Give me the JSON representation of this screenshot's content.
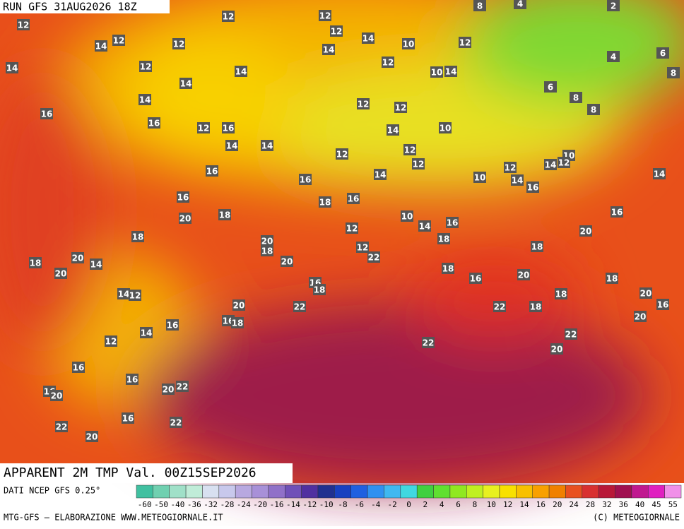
{
  "header": {
    "run": "RUN GFS 31AUG2026 18Z"
  },
  "map": {
    "labels": [
      12,
      12,
      12,
      14,
      12,
      12,
      12,
      14,
      14,
      10,
      12,
      12,
      14,
      12,
      14,
      10,
      14,
      14,
      14,
      6,
      8,
      8,
      16,
      16,
      12,
      16,
      12,
      12,
      14,
      10,
      14,
      14,
      12,
      12,
      12,
      10,
      12,
      14,
      12,
      14,
      10,
      14,
      16,
      14,
      16,
      16,
      16,
      18,
      16,
      18,
      20,
      10,
      14,
      16,
      16,
      20,
      12,
      18,
      18,
      20,
      18,
      12,
      22,
      18,
      20,
      20,
      18,
      20,
      14,
      18,
      16,
      20,
      18,
      14,
      12,
      16,
      18,
      18,
      20,
      16,
      20,
      22,
      22,
      18,
      16,
      18,
      16,
      14,
      12,
      22,
      20,
      22,
      20,
      16,
      16,
      16,
      20,
      20,
      22,
      16,
      22,
      22,
      20,
      8,
      4,
      2,
      4,
      6,
      8
    ]
  },
  "footer": {
    "title": "APPARENT 2M TMP Val. 00Z15SEP2026",
    "source": "DATI NCEP GFS 0.25°",
    "credit": "MTG-GFS — ELABORAZIONE WWW.METEOGIORNALE.IT",
    "copyright": "(C) METEOGIORNALE"
  },
  "legend": {
    "ticks": [
      -60,
      -50,
      -40,
      -36,
      -32,
      -28,
      -24,
      -20,
      -16,
      -14,
      -12,
      -10,
      -8,
      -6,
      -4,
      -2,
      0,
      2,
      4,
      6,
      8,
      10,
      12,
      14,
      16,
      20,
      24,
      28,
      32,
      36,
      40,
      45,
      55
    ],
    "colors": [
      "#40c0a0",
      "#70d0b0",
      "#a0e0c8",
      "#c0ecd8",
      "#d8e0f0",
      "#c8c8ec",
      "#b8a8e0",
      "#a890d8",
      "#9070c8",
      "#7050b8",
      "#5030a0",
      "#203090",
      "#1840c0",
      "#2060e0",
      "#3090f0",
      "#40b8f0",
      "#40d8e0",
      "#40d040",
      "#60e030",
      "#90e820",
      "#c0f020",
      "#e8f020",
      "#f8e000",
      "#f8c000",
      "#f8a000",
      "#f08000",
      "#e85020",
      "#d83030",
      "#b81838",
      "#a01050",
      "#c01890",
      "#e020c0",
      "#f090e8"
    ]
  }
}
